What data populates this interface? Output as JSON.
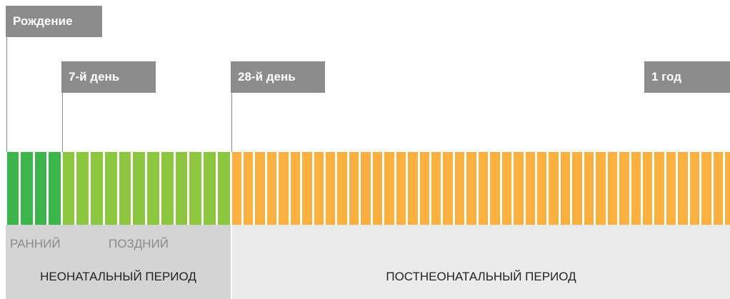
{
  "markers": [
    {
      "label": "Рождение"
    },
    {
      "label": "7-й день"
    },
    {
      "label": "28-й день"
    },
    {
      "label": "1 год"
    }
  ],
  "neonatal": {
    "early": "РАННИЙ",
    "late": "ПОЗДНИЙ",
    "title": "НЕОНАТАЛЬНЫЙ ПЕРИОД"
  },
  "postneonatal": {
    "title": "ПОСТНЕОНАТАЛЬНЫЙ ПЕРИОД"
  }
}
